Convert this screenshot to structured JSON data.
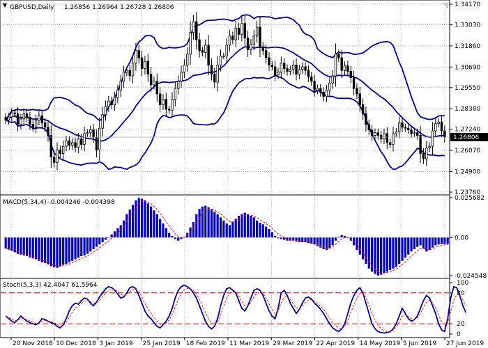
{
  "header": {
    "symbol": "GBPUSD,Daily",
    "ohlc": "1.26856 1.26964 1.26728 1.26806",
    "macd": "MACD(5,34,4) -0.004246 -0.004398",
    "stoch": "Stoch(5,3,3) 42.4047 61.5964"
  },
  "price_labels": [
    "1.34170",
    "1.33030",
    "1.31860",
    "1.30690",
    "1.29550",
    "1.28380",
    "1.27240",
    "1.26070",
    "1.24900",
    "1.23760"
  ],
  "current_price": "1.26806",
  "macd_labels": [
    "0.025682",
    "0.00",
    "-0.024548"
  ],
  "stoch_labels": [
    "100",
    "80",
    "20",
    "0"
  ],
  "date_labels": [
    "20 Nov 2018",
    "10 Dec 2018",
    "3 Jan 2019",
    "25 Jan 2019",
    "18 Feb 2019",
    "11 Mar 2019",
    "29 Mar 2019",
    "22 Apr 2019",
    "14 May 2019",
    "5 Jun 2019",
    "27 Jun 2019"
  ],
  "colors": {
    "bollinger": "#000099",
    "macd_bar": "#0000cc",
    "signal": "#ff0000",
    "level": "#cc0000",
    "grid": "#999999",
    "candle": "#000000"
  },
  "chart_data": {
    "type": "line",
    "title": "GBPUSD,Daily",
    "x_ticks": [
      "20 Nov 2018",
      "10 Dec 2018",
      "3 Jan 2019",
      "25 Jan 2019",
      "18 Feb 2019",
      "11 Mar 2019",
      "29 Mar 2019",
      "22 Apr 2019",
      "14 May 2019",
      "5 Jun 2019",
      "27 Jun 2019"
    ],
    "price": {
      "ylim": [
        1.2376,
        1.3417
      ],
      "ticks": [
        1.3417,
        1.3303,
        1.3186,
        1.3069,
        1.2955,
        1.2838,
        1.2724,
        1.2607,
        1.249,
        1.2376
      ],
      "close": [
        1.2775,
        1.2792,
        1.2815,
        1.2809,
        1.2751,
        1.2781,
        1.281,
        1.279,
        1.2752,
        1.2735,
        1.2773,
        1.2798,
        1.276,
        1.2735,
        1.269,
        1.257,
        1.254,
        1.261,
        1.259,
        1.263,
        1.266,
        1.2635,
        1.265,
        1.2625,
        1.267,
        1.264,
        1.27,
        1.2705,
        1.2721,
        1.268,
        1.261,
        1.273,
        1.2805,
        1.285,
        1.288,
        1.286,
        1.29,
        1.294,
        1.299,
        1.304,
        1.305,
        1.302,
        1.309,
        1.316,
        1.312,
        1.306,
        1.31,
        1.303,
        1.297,
        1.299,
        1.292,
        1.286,
        1.289,
        1.2835,
        1.283,
        1.289,
        1.295,
        1.299,
        1.304,
        1.308,
        1.314,
        1.326,
        1.332,
        1.322,
        1.316,
        1.315,
        1.319,
        1.308,
        1.303,
        1.2985,
        1.308,
        1.313,
        1.313,
        1.319,
        1.324,
        1.322,
        1.3285,
        1.325,
        1.331,
        1.323,
        1.3165,
        1.3195,
        1.324,
        1.329,
        1.318,
        1.316,
        1.312,
        1.308,
        1.307,
        1.3025,
        1.304,
        1.309,
        1.306,
        1.3045,
        1.3055,
        1.308,
        1.303,
        1.3055,
        1.307,
        1.305,
        1.3015,
        1.299,
        1.294,
        1.295,
        1.293,
        1.2905,
        1.294,
        1.298,
        1.302,
        1.314,
        1.312,
        1.305,
        1.3075,
        1.3045,
        1.301,
        1.295,
        1.292,
        1.286,
        1.281,
        1.275,
        1.272,
        1.269,
        1.2705,
        1.269,
        1.267,
        1.27,
        1.265,
        1.264,
        1.27,
        1.271,
        1.276,
        1.2735,
        1.273,
        1.272,
        1.27,
        1.2705,
        1.269,
        1.259,
        1.256,
        1.262,
        1.263,
        1.2715,
        1.2755,
        1.2765,
        1.2715,
        1.2681
      ]
    },
    "macd": {
      "ylim": [
        -0.024548,
        0.025682
      ],
      "ticks": [
        0.025682,
        0.0,
        -0.024548
      ],
      "main": [
        -0.007,
        -0.0078,
        -0.0085,
        -0.0095,
        -0.0105,
        -0.011,
        -0.0115,
        -0.012,
        -0.0128,
        -0.0135,
        -0.014,
        -0.015,
        -0.016,
        -0.0165,
        -0.0172,
        -0.0185,
        -0.0192,
        -0.0195,
        -0.0185,
        -0.0176,
        -0.017,
        -0.016,
        -0.015,
        -0.014,
        -0.013,
        -0.012,
        -0.0115,
        -0.0105,
        -0.009,
        -0.0075,
        -0.006,
        -0.0045,
        -0.003,
        -0.0015,
        0.0,
        0.002,
        0.004,
        0.006,
        0.008,
        0.011,
        0.015,
        0.018,
        0.021,
        0.024,
        0.0255,
        0.025,
        0.024,
        0.022,
        0.02,
        0.0175,
        0.015,
        0.012,
        0.009,
        0.006,
        0.003,
        0.001,
        -0.001,
        -0.002,
        -0.001,
        0.0005,
        0.003,
        0.0065,
        0.01,
        0.015,
        0.0185,
        0.02,
        0.0205,
        0.0195,
        0.018,
        0.0165,
        0.015,
        0.013,
        0.011,
        0.009,
        0.008,
        0.01,
        0.012,
        0.014,
        0.015,
        0.016,
        0.015,
        0.014,
        0.013,
        0.011,
        0.0095,
        0.0085,
        0.007,
        0.0055,
        0.0035,
        0.001,
        -0.0005,
        -0.001,
        -0.0015,
        -0.002,
        -0.002,
        -0.002,
        -0.0025,
        -0.003,
        -0.003,
        -0.003,
        -0.0035,
        -0.004,
        -0.0045,
        -0.0055,
        -0.0065,
        -0.0075,
        -0.008,
        -0.007,
        -0.005,
        -0.002,
        0.0005,
        0.0015,
        0.001,
        0.0,
        -0.002,
        -0.005,
        -0.008,
        -0.011,
        -0.014,
        -0.017,
        -0.02,
        -0.022,
        -0.0235,
        -0.0245,
        -0.024,
        -0.023,
        -0.022,
        -0.021,
        -0.02,
        -0.019,
        -0.017,
        -0.015,
        -0.013,
        -0.011,
        -0.009,
        -0.0075,
        -0.006,
        -0.005,
        -0.007,
        -0.009,
        -0.008,
        -0.0065,
        -0.005,
        -0.0045,
        -0.0043,
        -0.0042,
        -0.0042
      ]
    },
    "stochastic": {
      "ylim": [
        0,
        100
      ],
      "ticks": [
        100,
        80,
        20,
        0
      ],
      "levels": [
        80,
        20
      ],
      "main": [
        35,
        30,
        25,
        22,
        28,
        35,
        30,
        25,
        22,
        20,
        18,
        22,
        30,
        28,
        25,
        22,
        20,
        15,
        12,
        18,
        30,
        45,
        55,
        60,
        58,
        65,
        70,
        68,
        60,
        55,
        62,
        72,
        80,
        88,
        92,
        90,
        85,
        78,
        70,
        72,
        80,
        90,
        92,
        88,
        75,
        60,
        45,
        35,
        30,
        22,
        15,
        12,
        18,
        25,
        35,
        50,
        70,
        85,
        92,
        95,
        92,
        88,
        80,
        70,
        55,
        40,
        25,
        15,
        10,
        15,
        30,
        55,
        75,
        88,
        90,
        85,
        80,
        65,
        50,
        45,
        55,
        70,
        85,
        88,
        85,
        75,
        60,
        45,
        35,
        30,
        50,
        80,
        85,
        75,
        60,
        50,
        40,
        48,
        60,
        70,
        72,
        68,
        60,
        55,
        48,
        40,
        30,
        20,
        12,
        8,
        5,
        10,
        20,
        40,
        60,
        75,
        85,
        90,
        80,
        60,
        40,
        20,
        10,
        5,
        3,
        2,
        3,
        5,
        10,
        20,
        35,
        50,
        40,
        30,
        25,
        28,
        35,
        50,
        65,
        75,
        70,
        55,
        40,
        20,
        8,
        5,
        30,
        70,
        92,
        90,
        75,
        55,
        42
      ]
    }
  }
}
